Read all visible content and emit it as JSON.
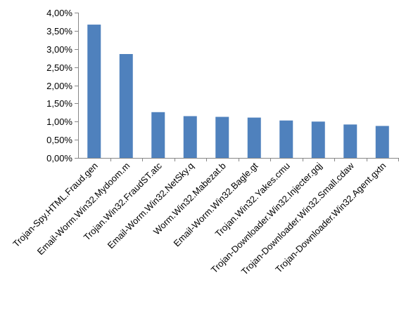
{
  "colors": {
    "bar": "#4F81BD",
    "gridline": "#878787",
    "axis": "#878787",
    "text": "#000000",
    "background": "#FFFFFF"
  },
  "chart_data": {
    "type": "bar",
    "title": "",
    "xlabel": "",
    "ylabel": "",
    "ylim": [
      0,
      4.0
    ],
    "y_tick_values": [
      0,
      0.5,
      1.0,
      1.5,
      2.0,
      2.5,
      3.0,
      3.5,
      4.0
    ],
    "y_tick_labels": [
      "0,00%",
      "0,50%",
      "1,00%",
      "1,50%",
      "2,00%",
      "2,50%",
      "3,00%",
      "3,50%",
      "4,00%"
    ],
    "grid": false,
    "legend": "none",
    "categories": [
      "Trojan-Spy.HTML.Fraud.gen",
      "Email-Worm.Win32.Mydoom.m",
      "Trojan.Win32.FraudST.atc",
      "Email-Worm.Win32.NetSky.q",
      "Worm.Win32.Mabezat.b",
      "Email-Worm.Win32.Bagle.gt",
      "Trojan.Win32.Yakes.cmu",
      "Trojan-Downloader.Win32.Injecter.gqj",
      "Trojan-Downloader.Win32.Small.cdaw",
      "Trojan-Downloader.Win32.Agent.gxtn"
    ],
    "values": [
      3.67,
      2.86,
      1.26,
      1.15,
      1.13,
      1.11,
      1.03,
      1.0,
      0.92,
      0.88
    ]
  }
}
